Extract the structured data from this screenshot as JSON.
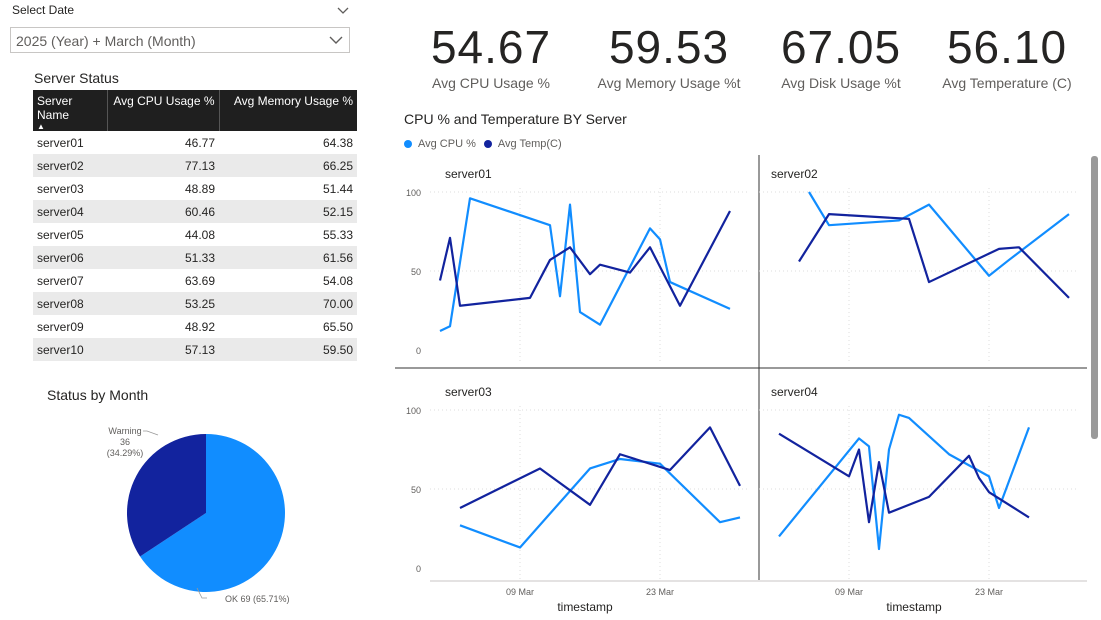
{
  "slicer": {
    "title": "Select Date",
    "value": "2025 (Year) + March (Month)"
  },
  "kpis": [
    {
      "value": "54.67",
      "label": "Avg CPU Usage %"
    },
    {
      "value": "59.53",
      "label": "Avg Memory Usage %t"
    },
    {
      "value": "67.05",
      "label": "Avg Disk Usage %t"
    },
    {
      "value": "56.10",
      "label": "Avg Temperature (C)"
    }
  ],
  "server_table": {
    "title": "Server Status",
    "columns": [
      "Server Name",
      "Avg CPU Usage %",
      "Avg Memory Usage %"
    ],
    "rows": [
      [
        "server01",
        "46.77",
        "64.38"
      ],
      [
        "server02",
        "77.13",
        "66.25"
      ],
      [
        "server03",
        "48.89",
        "51.44"
      ],
      [
        "server04",
        "60.46",
        "52.15"
      ],
      [
        "server05",
        "44.08",
        "55.33"
      ],
      [
        "server06",
        "51.33",
        "61.56"
      ],
      [
        "server07",
        "63.69",
        "54.08"
      ],
      [
        "server08",
        "53.25",
        "70.00"
      ],
      [
        "server09",
        "48.92",
        "65.50"
      ],
      [
        "server10",
        "57.13",
        "59.50"
      ]
    ]
  },
  "status_pie": {
    "title": "Status by Month",
    "warning_label": "Warning",
    "warning_detail": "36 (34.29%)",
    "ok_label": "OK 69 (65.71%)"
  },
  "cpu_temp_chart": {
    "title": "CPU % and Temperature BY Server",
    "legend": [
      "Avg CPU %",
      "Avg Temp(C)"
    ],
    "colors": {
      "cpu": "#118dff",
      "temp": "#12239e"
    },
    "y_ticks": [
      "100",
      "50",
      "0"
    ],
    "x_ticks": [
      "09 Mar",
      "23 Mar"
    ],
    "x_title": "timestamp"
  },
  "chart_data": [
    {
      "type": "pie",
      "title": "Status by Month",
      "slices": [
        {
          "label": "OK",
          "value": 69,
          "percent": 65.71,
          "color": "#118dff"
        },
        {
          "label": "Warning",
          "value": 36,
          "percent": 34.29,
          "color": "#12239e"
        }
      ]
    },
    {
      "type": "line",
      "title": "CPU % and Temperature BY Server",
      "xlabel": "timestamp",
      "x_ticks": [
        "09 Mar",
        "23 Mar"
      ],
      "ylim": [
        0,
        100
      ],
      "panels": [
        {
          "name": "server01",
          "series": [
            {
              "name": "Avg CPU %",
              "x": [
                1,
                2,
                4,
                12,
                13,
                14,
                15,
                17,
                22,
                23,
                24,
                30
              ],
              "y": [
                12,
                15,
                96,
                79,
                34,
                92,
                24,
                16,
                77,
                70,
                43,
                26
              ]
            },
            {
              "name": "Avg Temp(C)",
              "x": [
                1,
                2,
                3,
                10,
                12,
                14,
                16,
                17,
                20,
                22,
                25,
                30
              ],
              "y": [
                44,
                71,
                28,
                33,
                57,
                65,
                48,
                54,
                49,
                65,
                28,
                88
              ]
            }
          ]
        },
        {
          "name": "server02",
          "series": [
            {
              "name": "Avg CPU %",
              "x": [
                5,
                7,
                14,
                17,
                23,
                25,
                31
              ],
              "y": [
                100,
                79,
                82,
                92,
                47,
                57,
                86
              ]
            },
            {
              "name": "Avg Temp(C)",
              "x": [
                4,
                7,
                15,
                17,
                24,
                26,
                31
              ],
              "y": [
                56,
                86,
                83,
                43,
                64,
                65,
                33
              ]
            }
          ]
        },
        {
          "name": "server03",
          "series": [
            {
              "name": "Avg CPU %",
              "x": [
                3,
                9,
                16,
                19,
                23,
                29,
                31
              ],
              "y": [
                27,
                13,
                63,
                69,
                66,
                29,
                32
              ]
            },
            {
              "name": "Avg Temp(C)",
              "x": [
                3,
                11,
                16,
                19,
                24,
                28,
                31
              ],
              "y": [
                38,
                63,
                40,
                72,
                62,
                89,
                52
              ]
            }
          ]
        },
        {
          "name": "server04",
          "series": [
            {
              "name": "Avg CPU %",
              "x": [
                2,
                10,
                11,
                12,
                13,
                14,
                15,
                19,
                23,
                24,
                27
              ],
              "y": [
                20,
                82,
                77,
                12,
                75,
                97,
                95,
                72,
                58,
                38,
                89
              ]
            },
            {
              "name": "Avg Temp(C)",
              "x": [
                2,
                9,
                10,
                11,
                12,
                13,
                17,
                21,
                22,
                23,
                27
              ],
              "y": [
                85,
                58,
                75,
                29,
                67,
                35,
                45,
                71,
                57,
                48,
                32
              ]
            }
          ]
        }
      ]
    }
  ]
}
